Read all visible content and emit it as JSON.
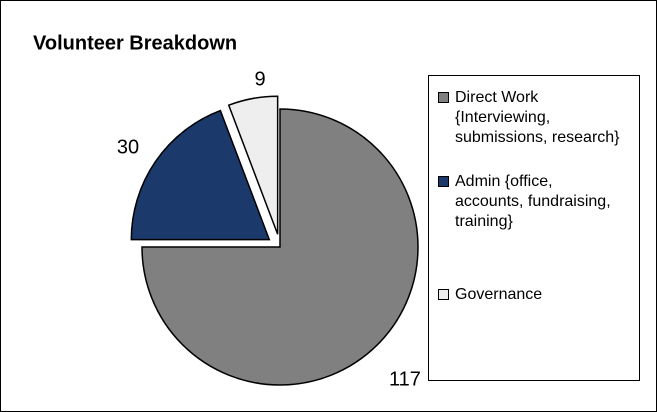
{
  "chart_data": {
    "type": "pie",
    "title": "Volunteer Breakdown",
    "labels": [
      "Direct Work {Interviewing, submissions, research}",
      "Admin {office, accounts, fundraising, training}",
      "Governance"
    ],
    "values": [
      117,
      30,
      9
    ],
    "colors": [
      "#808080",
      "#1b3a6b",
      "#eeeeee"
    ],
    "legend": "right"
  }
}
